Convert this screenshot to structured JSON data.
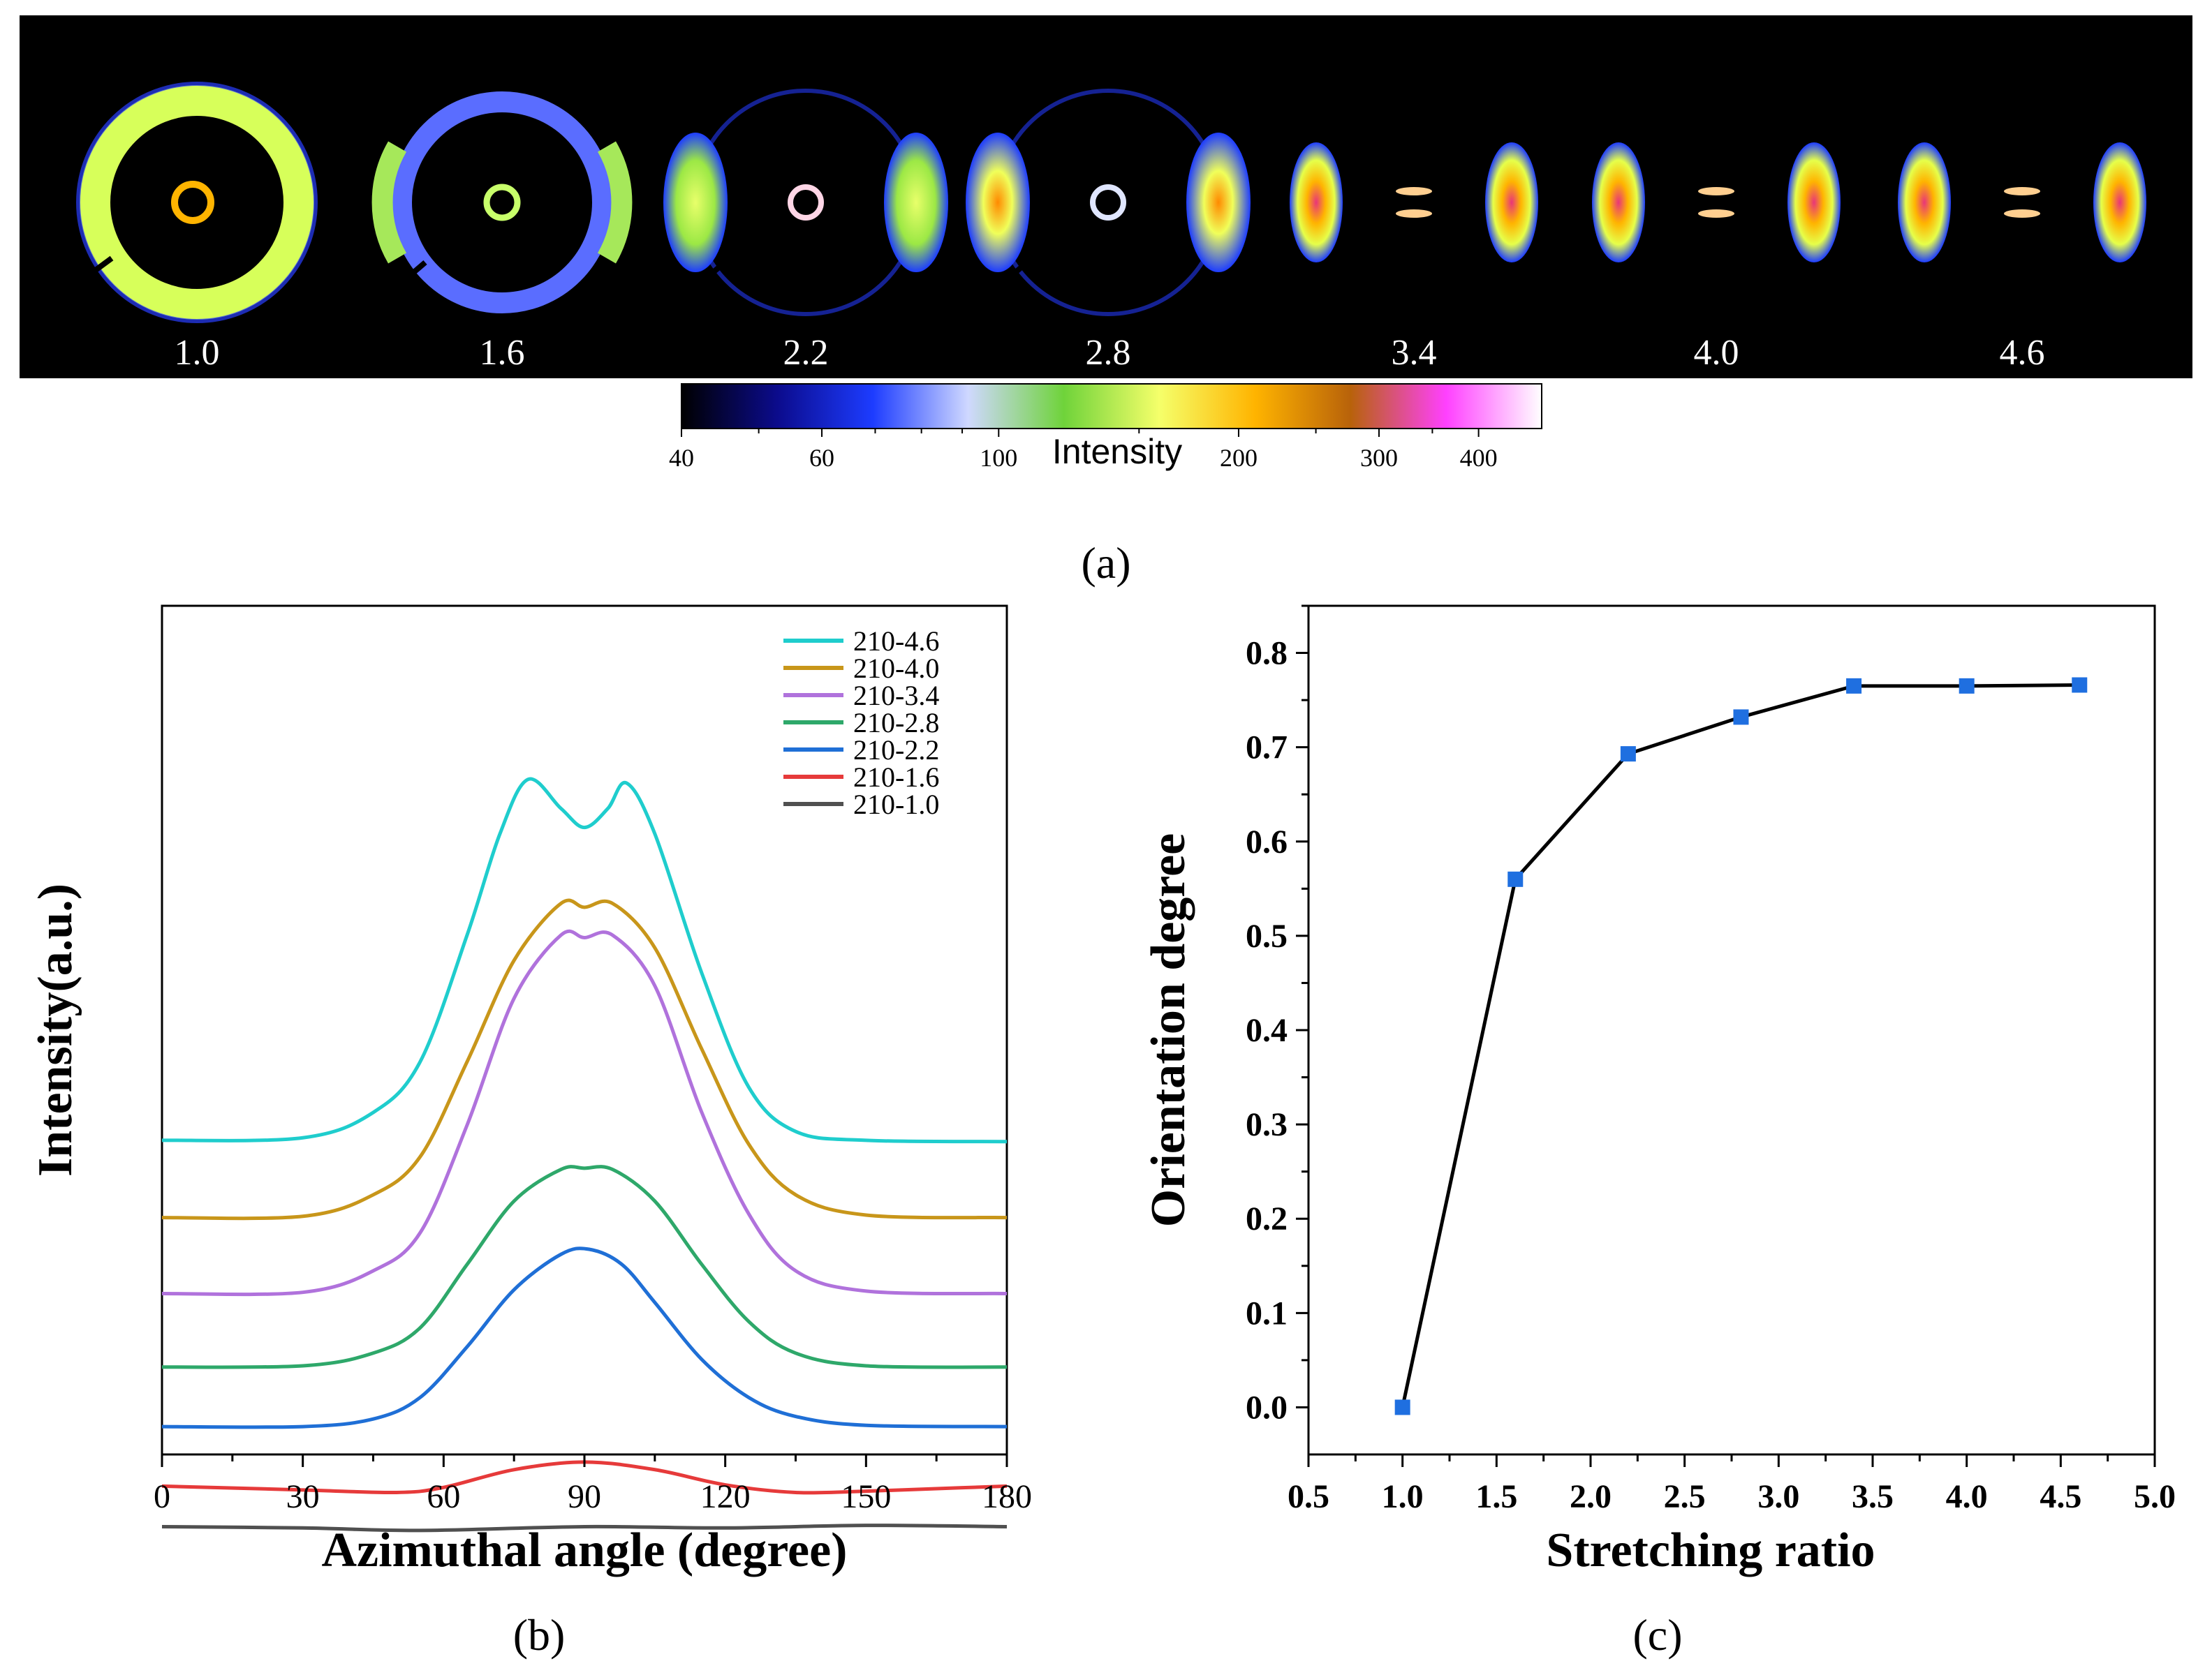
{
  "panel_a": {
    "caption": "(a)",
    "ratio_labels": [
      "1.0",
      "1.6",
      "2.2",
      "2.8",
      "3.4",
      "4.0",
      "4.6"
    ],
    "colorbar": {
      "title": "Intensity",
      "ticks": [
        {
          "value": 40,
          "label": "40"
        },
        {
          "value": 60,
          "label": "60"
        },
        {
          "value": 100,
          "label": "100"
        },
        {
          "value": 200,
          "label": "200"
        },
        {
          "value": 300,
          "label": "300"
        },
        {
          "value": 400,
          "label": "400"
        }
      ],
      "colors": [
        "#000000",
        "#0b0b8c",
        "#1d3cff",
        "#cfd8ff",
        "#6fd33a",
        "#f5ff6a",
        "#ffb400",
        "#b8620a",
        "#ff40ff",
        "#ffffff"
      ]
    }
  },
  "panel_b": {
    "caption": "(b)"
  },
  "panel_c": {
    "caption": "(c)"
  },
  "chart_data": [
    {
      "id": "b",
      "type": "line",
      "title": "",
      "xlabel": "Azimuthal angle (degree)",
      "ylabel": "Intensity(a.u.)",
      "xlim": [
        0,
        180
      ],
      "ylim": [
        -0.5,
        6.2
      ],
      "xticks": [
        0,
        30,
        60,
        90,
        120,
        150,
        180
      ],
      "yticks_shown": false,
      "grid": false,
      "legend": "top-right",
      "series": [
        {
          "name": "210-4.6",
          "color": "#1fcdcd",
          "baseline": 1.98,
          "peaks": [
            {
              "mu": 77,
              "amp": 2.05,
              "sigma": 13
            },
            {
              "mu": 99,
              "amp": 1.95,
              "sigma": 13
            }
          ],
          "x": [
            0,
            30,
            45,
            55,
            65,
            72,
            78,
            85,
            90,
            95,
            99,
            105,
            115,
            125,
            135,
            150,
            180
          ],
          "y": [
            1.98,
            2.0,
            2.2,
            2.6,
            3.6,
            4.4,
            4.83,
            4.6,
            4.45,
            4.6,
            4.8,
            4.4,
            3.3,
            2.4,
            2.05,
            1.98,
            1.97
          ]
        },
        {
          "name": "210-4.0",
          "color": "#c8961a",
          "baseline": 1.37,
          "x": [
            0,
            30,
            45,
            55,
            65,
            75,
            85,
            90,
            96,
            105,
            115,
            125,
            135,
            150,
            180
          ],
          "y": [
            1.37,
            1.38,
            1.55,
            1.85,
            2.6,
            3.4,
            3.85,
            3.82,
            3.85,
            3.5,
            2.7,
            1.95,
            1.55,
            1.39,
            1.37
          ]
        },
        {
          "name": "210-3.4",
          "color": "#b072dc",
          "baseline": 0.77,
          "x": [
            0,
            30,
            45,
            55,
            65,
            75,
            85,
            90,
            96,
            105,
            115,
            125,
            135,
            150,
            180
          ],
          "y": [
            0.77,
            0.78,
            0.95,
            1.25,
            2.1,
            3.1,
            3.6,
            3.58,
            3.6,
            3.2,
            2.2,
            1.4,
            0.95,
            0.79,
            0.77
          ]
        },
        {
          "name": "210-2.8",
          "color": "#2ea86a",
          "baseline": 0.19,
          "x": [
            0,
            30,
            45,
            55,
            65,
            75,
            85,
            90,
            96,
            105,
            115,
            125,
            135,
            150,
            180
          ],
          "y": [
            0.19,
            0.2,
            0.3,
            0.5,
            1.0,
            1.5,
            1.75,
            1.76,
            1.75,
            1.5,
            1.0,
            0.55,
            0.3,
            0.2,
            0.19
          ]
        },
        {
          "name": "210-2.2",
          "color": "#1f6fd6",
          "baseline": -0.28,
          "x": [
            0,
            30,
            45,
            55,
            65,
            75,
            85,
            91,
            98,
            105,
            115,
            125,
            135,
            150,
            180
          ],
          "y": [
            -0.28,
            -0.28,
            -0.22,
            -0.05,
            0.35,
            0.8,
            1.08,
            1.12,
            1.0,
            0.7,
            0.25,
            -0.05,
            -0.2,
            -0.27,
            -0.28
          ]
        },
        {
          "name": "210-1.6",
          "color": "#e63a3a",
          "baseline": -0.75,
          "x": [
            0,
            30,
            50,
            60,
            75,
            90,
            105,
            120,
            135,
            150,
            165,
            180
          ],
          "y": [
            -0.75,
            -0.78,
            -0.8,
            -0.76,
            -0.62,
            -0.56,
            -0.62,
            -0.74,
            -0.8,
            -0.79,
            -0.77,
            -0.75
          ]
        },
        {
          "name": "210-1.0",
          "color": "#505050",
          "baseline": -1.07,
          "x": [
            0,
            30,
            55,
            90,
            120,
            150,
            180
          ],
          "y": [
            -1.07,
            -1.08,
            -1.1,
            -1.07,
            -1.08,
            -1.06,
            -1.07
          ]
        }
      ]
    },
    {
      "id": "c",
      "type": "line",
      "title": "",
      "xlabel": "Stretching ratio",
      "ylabel": "Orientation degree",
      "xlim": [
        0.5,
        5.0
      ],
      "ylim": [
        -0.05,
        0.85
      ],
      "xticks": [
        "0.5",
        "1.0",
        "1.5",
        "2.0",
        "2.5",
        "3.0",
        "3.5",
        "4.0",
        "4.5",
        "5.0"
      ],
      "yticks": [
        "0.0",
        "0.1",
        "0.2",
        "0.3",
        "0.4",
        "0.5",
        "0.6",
        "0.7",
        "0.8"
      ],
      "grid": false,
      "series": [
        {
          "name": "Orientation degree",
          "color": "#000000",
          "marker_color": "#1f6fe0",
          "x": [
            1.0,
            1.6,
            2.2,
            2.8,
            3.4,
            4.0,
            4.6
          ],
          "y": [
            0.0,
            0.56,
            0.693,
            0.732,
            0.765,
            0.765,
            0.766
          ]
        }
      ]
    }
  ]
}
